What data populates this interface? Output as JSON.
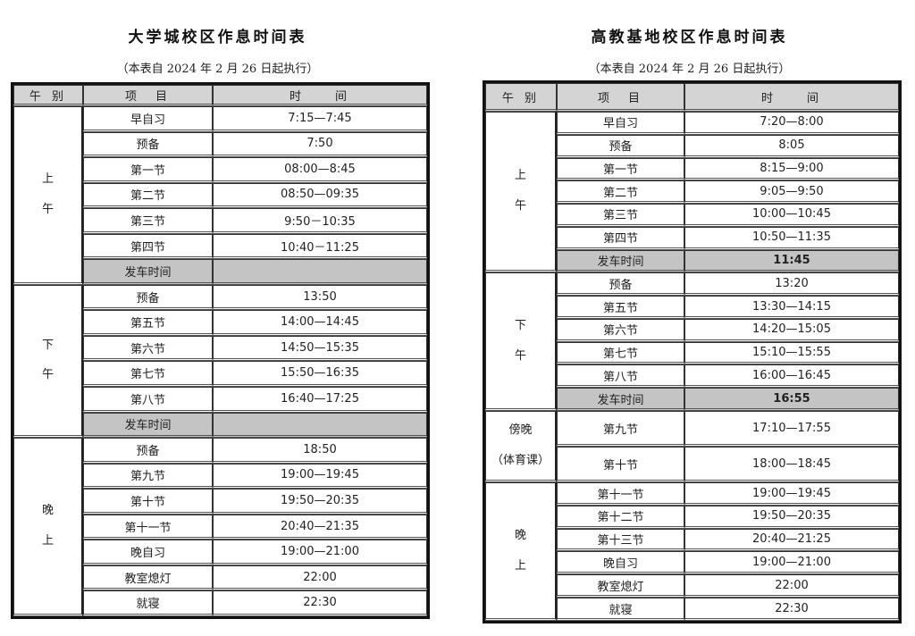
{
  "campuses": [
    {
      "title": "大学城校区作息时间表",
      "subtitle": "（本表自 2024 年 2 月 26 日起执行）",
      "headers": [
        "午 别",
        "项　目",
        "时　　间"
      ],
      "sections": [
        {
          "label": [
            "上",
            "午"
          ],
          "rows": [
            {
              "item": "早自习",
              "time": "7:15—7:45"
            },
            {
              "item": "预备",
              "time": "7:50"
            },
            {
              "item": "第一节",
              "time": "08:00—8:45"
            },
            {
              "item": "第二节",
              "time": "08:50—09:35"
            },
            {
              "item": "第三节",
              "time": "9:50－10:35"
            },
            {
              "item": "第四节",
              "time": "10:40－11:25"
            },
            {
              "item": "发车时间",
              "time": "",
              "highlight": true
            }
          ]
        },
        {
          "label": [
            "下",
            "午"
          ],
          "rows": [
            {
              "item": "预备",
              "time": "13:50"
            },
            {
              "item": "第五节",
              "time": "14:00—14:45"
            },
            {
              "item": "第六节",
              "time": "14:50—15:35"
            },
            {
              "item": "第七节",
              "time": "15:50—16:35"
            },
            {
              "item": "第八节",
              "time": "16:40—17:25"
            },
            {
              "item": "发车时间",
              "time": "",
              "highlight": true
            }
          ]
        },
        {
          "label": [
            "晚",
            "上"
          ],
          "rows": [
            {
              "item": "预备",
              "time": "18:50"
            },
            {
              "item": "第九节",
              "time": "19:00—19:45"
            },
            {
              "item": "第十节",
              "time": "19:50—20:35"
            },
            {
              "item": "第十一节",
              "time": "20:40—21:35"
            },
            {
              "item": "晚自习",
              "time": "19:00—21:00"
            },
            {
              "item": "教室熄灯",
              "time": "22:00"
            },
            {
              "item": "就寝",
              "time": "22:30"
            }
          ]
        }
      ]
    },
    {
      "title": "高教基地校区作息时间表",
      "subtitle": "（本表自 2024 年 2 月 26 日起执行）",
      "headers": [
        "午 别",
        "项　目",
        "时　　间"
      ],
      "sections": [
        {
          "label": [
            "上",
            "午"
          ],
          "rows": [
            {
              "item": "早自习",
              "time": "7:20—8:00"
            },
            {
              "item": "预备",
              "time": "8:05"
            },
            {
              "item": "第一节",
              "time": "8:15—9:00"
            },
            {
              "item": "第二节",
              "time": "9:05—9:50"
            },
            {
              "item": "第三节",
              "time": "10:00—10:45"
            },
            {
              "item": "第四节",
              "time": "10:50—11:35"
            },
            {
              "item": "发车时间",
              "time": "11:45",
              "highlight": true
            }
          ]
        },
        {
          "label": [
            "下",
            "午"
          ],
          "rows": [
            {
              "item": "预备",
              "time": "13:20"
            },
            {
              "item": "第五节",
              "time": "13:30—14:15"
            },
            {
              "item": "第六节",
              "time": "14:20—15:05"
            },
            {
              "item": "第七节",
              "time": "15:10—15:55"
            },
            {
              "item": "第八节",
              "time": "16:00—16:45"
            },
            {
              "item": "发车时间",
              "time": "16:55",
              "highlight": true
            }
          ]
        },
        {
          "label": [
            "傍晚",
            "（体育课）"
          ],
          "rows": [
            {
              "item": "第九节",
              "time": "17:10—17:55"
            },
            {
              "item": "第十节",
              "time": "18:00—18:45"
            }
          ]
        },
        {
          "label": [
            "晚",
            "上"
          ],
          "rows": [
            {
              "item": "第十一节",
              "time": "19:00—19:45"
            },
            {
              "item": "第十二节",
              "time": "19:50—20:35"
            },
            {
              "item": "第十三节",
              "time": "20:40—21:25"
            },
            {
              "item": "晚自习",
              "time": "19:00—21:00"
            },
            {
              "item": "教室熄灯",
              "time": "22:00"
            },
            {
              "item": "就寝",
              "time": "22:30"
            }
          ]
        }
      ]
    }
  ]
}
